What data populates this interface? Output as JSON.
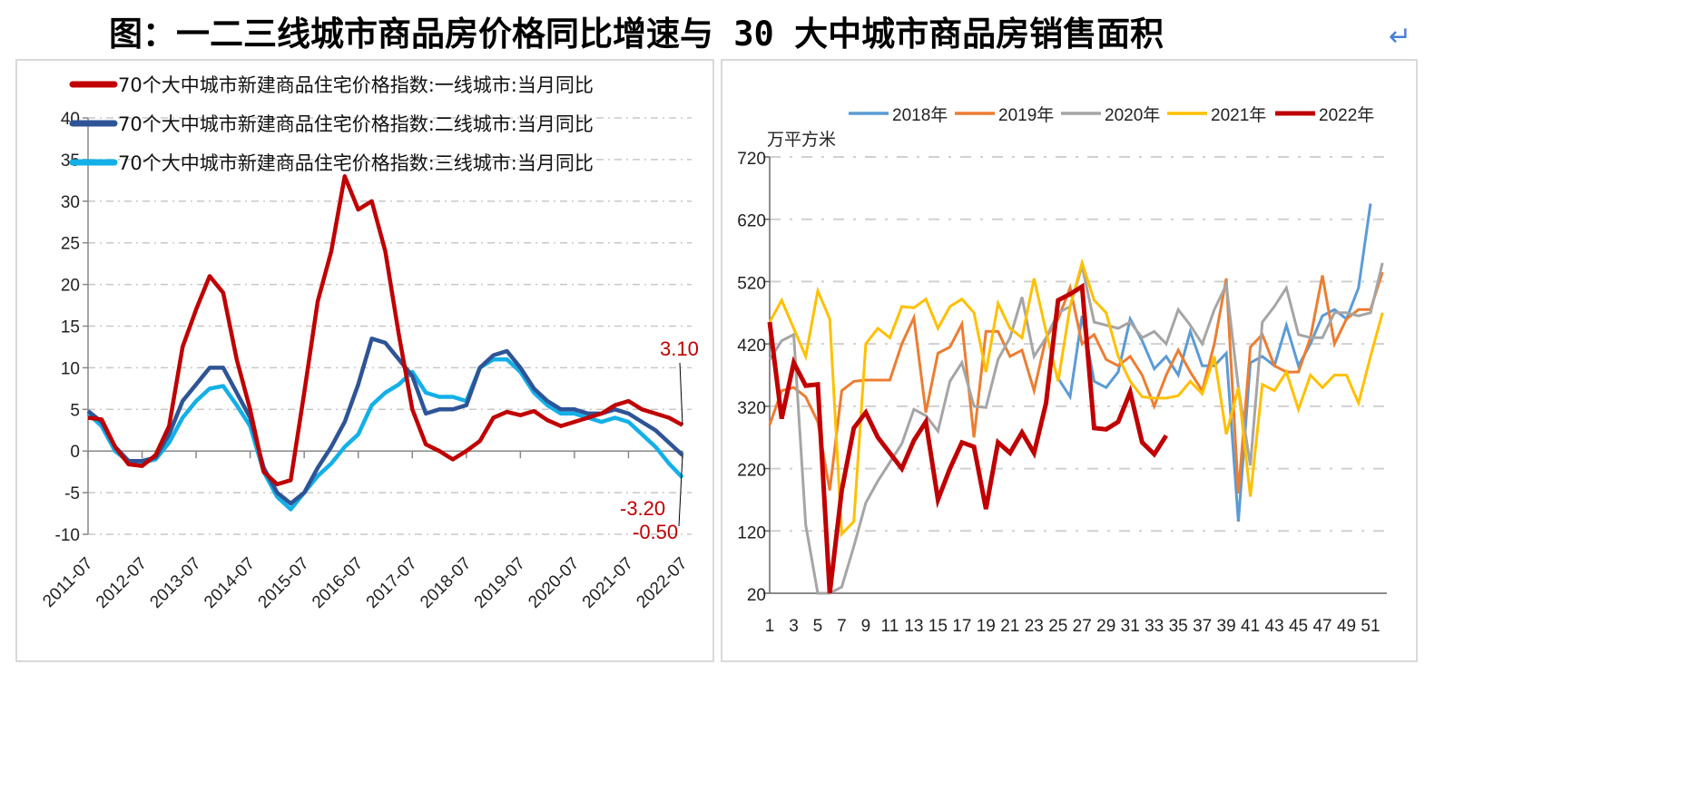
{
  "title": "图：一二三线城市商品房价格同比增速与 30 大中城市商品房销售面积",
  "title_mark": "↵",
  "colors": {
    "tier1": "#c00000",
    "tier2": "#2e5496",
    "tier3": "#13b0e8",
    "y2018": "#5b9bd5",
    "y2019": "#ed7d31",
    "y2020": "#a5a5a5",
    "y2021": "#ffc000",
    "y2022": "#c00000",
    "title_mark": "#4a7fd4"
  },
  "chart_data": [
    {
      "type": "line",
      "title": "",
      "xlabel": "",
      "ylabel": "",
      "ylim": [
        -10,
        40
      ],
      "yticks": [
        "40",
        "35",
        "30",
        "25",
        "20",
        "15",
        "10",
        "5",
        "0",
        "-5",
        "-10"
      ],
      "x_tick_labels": [
        "2011-07",
        "2012-07",
        "2013-07",
        "2014-07",
        "2015-07",
        "2016-07",
        "2017-07",
        "2018-07",
        "2019-07",
        "2020-07",
        "2021-07",
        "2022-07"
      ],
      "x_note": "quarterly samples, months since 2011-07",
      "x": [
        0,
        3,
        6,
        9,
        12,
        15,
        18,
        21,
        24,
        27,
        30,
        33,
        36,
        39,
        42,
        45,
        48,
        51,
        54,
        57,
        60,
        63,
        66,
        69,
        72,
        75,
        78,
        81,
        84,
        87,
        90,
        93,
        96,
        99,
        102,
        105,
        108,
        111,
        114,
        117,
        120,
        123,
        126,
        129,
        132
      ],
      "legend_position": "top-left",
      "grid": true,
      "series": [
        {
          "name": "70个大中城市新建商品住宅价格指数:一线城市:当月同比",
          "color_key": "tier1",
          "values": [
            4.0,
            3.8,
            0.5,
            -1.6,
            -1.8,
            -0.5,
            3,
            12.5,
            17,
            21,
            19,
            11,
            5,
            -2.5,
            -4,
            -3.5,
            7,
            18,
            24,
            33,
            29,
            30,
            24,
            14,
            5,
            0.8,
            0,
            -1,
            0,
            1.2,
            4,
            4.7,
            4.3,
            4.8,
            3.7,
            3,
            3.5,
            4,
            4.5,
            5.5,
            6,
            5,
            4.5,
            4,
            3.1
          ]
        },
        {
          "name": "70个大中城市新建商品住宅价格指数:二线城市:当月同比",
          "color_key": "tier2",
          "values": [
            4.8,
            3.5,
            0.5,
            -1.2,
            -1.2,
            -0.8,
            2,
            6,
            8,
            10,
            10,
            7,
            4,
            -2,
            -5,
            -6.3,
            -5,
            -2,
            0.5,
            3.5,
            8,
            13.5,
            13,
            11,
            9,
            4.5,
            5,
            5,
            5.5,
            10,
            11.5,
            12,
            10,
            7.5,
            6,
            5,
            5,
            4.5,
            4.5,
            5,
            4.5,
            3.5,
            2.5,
            1,
            -0.5
          ]
        },
        {
          "name": "70个大中城市新建商品住宅价格指数:三线城市:当月同比",
          "color_key": "tier3",
          "values": [
            4.5,
            3,
            0,
            -1.3,
            -1.4,
            -1,
            1,
            4,
            6,
            7.5,
            7.8,
            5.5,
            3,
            -2.5,
            -5.5,
            -7,
            -5,
            -3,
            -1.5,
            0.5,
            2,
            5.5,
            7,
            8,
            9.5,
            7,
            6.5,
            6.5,
            6,
            10,
            11,
            11,
            9.5,
            7,
            5.5,
            4.5,
            4.5,
            4,
            3.5,
            4,
            3.5,
            2,
            0.5,
            -1.5,
            -3.2
          ]
        }
      ],
      "annotations": [
        {
          "text": "3.10",
          "series": "tier1"
        },
        {
          "text": "-3.20",
          "series": "tier3"
        },
        {
          "text": "-0.50",
          "series": "tier2"
        }
      ]
    },
    {
      "type": "line",
      "title": "",
      "ylabel": "万平方米",
      "xlabel": "",
      "ylim": [
        20,
        720
      ],
      "yticks": [
        "720",
        "620",
        "520",
        "420",
        "320",
        "220",
        "120",
        "20"
      ],
      "x_tick_labels": [
        "1",
        "3",
        "5",
        "7",
        "9",
        "11",
        "13",
        "15",
        "17",
        "19",
        "21",
        "23",
        "25",
        "27",
        "29",
        "31",
        "33",
        "35",
        "37",
        "39",
        "41",
        "43",
        "45",
        "47",
        "49",
        "51"
      ],
      "legend_position": "top",
      "grid": true,
      "series": [
        {
          "name": "2018年",
          "color_key": "y2018",
          "start": 25,
          "values": [
            365,
            335,
            465,
            360,
            350,
            375,
            460,
            425,
            380,
            400,
            370,
            440,
            385,
            385,
            405,
            135,
            390,
            400,
            385,
            450,
            385,
            420,
            465,
            475,
            460,
            510,
            645
          ]
        },
        {
          "name": "2019年",
          "color_key": "y2019",
          "start": 1,
          "values": [
            290,
            345,
            350,
            335,
            295,
            185,
            345,
            360,
            362,
            362,
            362,
            420,
            462,
            310,
            405,
            415,
            452,
            270,
            440,
            440,
            400,
            410,
            345,
            430,
            460,
            510,
            420,
            435,
            395,
            385,
            400,
            370,
            320,
            370,
            410,
            375,
            345,
            420,
            525,
            180,
            415,
            435,
            385,
            375,
            375,
            430,
            530,
            420,
            460,
            475,
            475,
            535
          ]
        },
        {
          "name": "2020年",
          "color_key": "y2020",
          "start": 1,
          "values": [
            395,
            425,
            435,
            130,
            20,
            20,
            30,
            95,
            165,
            200,
            230,
            260,
            315,
            305,
            280,
            360,
            390,
            320,
            318,
            395,
            430,
            495,
            400,
            430,
            470,
            480,
            545,
            455,
            450,
            445,
            455,
            430,
            440,
            420,
            475,
            450,
            420,
            475,
            515,
            350,
            225,
            455,
            480,
            510,
            435,
            430,
            430,
            470,
            470,
            465,
            470,
            550
          ]
        },
        {
          "name": "2021年",
          "color_key": "y2021",
          "start": 1,
          "values": [
            455,
            490,
            445,
            400,
            505,
            460,
            115,
            135,
            420,
            445,
            430,
            480,
            478,
            492,
            445,
            480,
            492,
            470,
            375,
            485,
            445,
            430,
            525,
            440,
            360,
            480,
            550,
            490,
            470,
            400,
            360,
            335,
            333,
            333,
            337,
            360,
            340,
            400,
            275,
            350,
            175,
            355,
            345,
            375,
            315,
            370,
            350,
            370,
            370,
            325,
            400,
            470
          ]
        },
        {
          "name": "2022年",
          "color_key": "y2022",
          "start": 1,
          "values": [
            455,
            300,
            390,
            353,
            355,
            20,
            185,
            285,
            310,
            270,
            245,
            220,
            265,
            295,
            170,
            220,
            262,
            255,
            155,
            262,
            245,
            278,
            245,
            325,
            490,
            500,
            512,
            285,
            283,
            295,
            343,
            262,
            243,
            273
          ]
        }
      ]
    }
  ]
}
